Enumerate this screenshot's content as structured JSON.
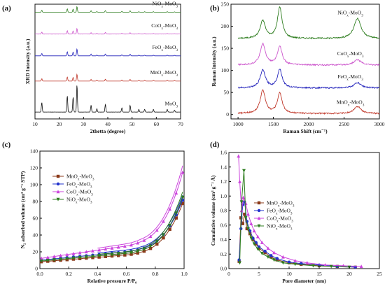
{
  "panels": [
    {
      "id": "a",
      "panel_label": "(a)",
      "chart_data": {
        "type": "line",
        "title": "",
        "xlabel": "2thetta (degree)",
        "ylabel": "XRD Intensity (a.u.)",
        "xlim": [
          10,
          70
        ],
        "xticks": [
          10,
          20,
          30,
          40,
          50,
          60,
          70
        ],
        "series": [
          {
            "name": "NiOx-MoO3",
            "label_main": "NiO",
            "label_sub": "x",
            "label_tail": "-MoO",
            "label_sub2": "3",
            "color": "#2e7d1f",
            "baseline": 0.93,
            "scale": 0.05
          },
          {
            "name": "CoOx-MoO3",
            "label_main": "CoO",
            "label_sub": "x",
            "label_tail": "-MoO",
            "label_sub2": "3",
            "color": "#cc55cc",
            "baseline": 0.74,
            "scale": 0.05
          },
          {
            "name": "FeOx-MoO3",
            "label_main": "FeO",
            "label_sub": "x",
            "label_tail": "-MoO",
            "label_sub2": "3",
            "color": "#2222bb",
            "baseline": 0.55,
            "scale": 0.06
          },
          {
            "name": "MnOx-MoO3",
            "label_main": "MnO",
            "label_sub": "x",
            "label_tail": "-MoO",
            "label_sub2": "3",
            "color": "#c0392b",
            "baseline": 0.33,
            "scale": 0.06
          },
          {
            "name": "MoO3",
            "label_main": "MoO",
            "label_sub": "3",
            "label_tail": "",
            "label_sub2": "",
            "color": "#111111",
            "baseline": 0.06,
            "scale": 0.24
          }
        ],
        "peaks": [
          [
            12.8,
            0.35
          ],
          [
            23.3,
            0.6
          ],
          [
            25.7,
            0.55
          ],
          [
            27.3,
            1.0
          ],
          [
            33.1,
            0.25
          ],
          [
            35.5,
            0.12
          ],
          [
            39.0,
            0.28
          ],
          [
            45.8,
            0.15
          ],
          [
            49.2,
            0.25
          ],
          [
            52.8,
            0.1
          ],
          [
            55.2,
            0.1
          ],
          [
            58.8,
            0.1
          ],
          [
            64.5,
            0.1
          ],
          [
            67.5,
            0.07
          ]
        ]
      }
    },
    {
      "id": "b",
      "panel_label": "(b)",
      "chart_data": {
        "type": "line",
        "title": "",
        "xlabel": "Raman Shift (cm⁻¹)",
        "ylabel": "Raman intensity (a.u.)",
        "xlim": [
          900,
          3000
        ],
        "ylim": [
          -10,
          250
        ],
        "xticks": [
          1000,
          1500,
          2000,
          2500,
          3000
        ],
        "yticks": [
          0,
          50,
          100,
          150,
          200,
          250
        ],
        "series": [
          {
            "name": "NiOx-MoO3",
            "label_main": "NiO",
            "label_sub": "x",
            "label_tail": "-MoO",
            "label_sub2": "3",
            "color": "#2e7d1f",
            "baseline": 172,
            "d": 40,
            "g": 70,
            "d2": 45
          },
          {
            "name": "CoOx-MoO3",
            "label_main": "CoO",
            "label_sub": "x",
            "label_tail": "-MoO",
            "label_sub2": "3",
            "color": "#cc55cc",
            "baseline": 112,
            "d": 48,
            "g": 42,
            "d2": 12
          },
          {
            "name": "FeOx-MoO3",
            "label_main": "FeO",
            "label_sub": "x",
            "label_tail": "-MoO",
            "label_sub2": "3",
            "color": "#2222bb",
            "baseline": 60,
            "d": 40,
            "g": 42,
            "d2": 12
          },
          {
            "name": "MnOx-MoO3",
            "label_main": "MnO",
            "label_sub": "x",
            "label_tail": "-MoO",
            "label_sub2": "3",
            "color": "#c0392b",
            "baseline": 2,
            "d": 52,
            "g": 46,
            "d2": 16
          }
        ]
      }
    },
    {
      "id": "c",
      "panel_label": "(c)",
      "chart_data": {
        "type": "line",
        "title": "",
        "xlabel": "Relative pressure P/P₀",
        "ylabel": "N₂ adsorbed volume (cm³ g⁻¹ STP)",
        "xlim": [
          0.0,
          1.0
        ],
        "ylim": [
          0,
          140
        ],
        "xticks": [
          0.0,
          0.2,
          0.4,
          0.6,
          0.8,
          1.0
        ],
        "xtick_labels": [
          "0.0",
          "0.2",
          "0.4",
          "0.6",
          "0.8",
          "1.0"
        ],
        "yticks": [
          0,
          20,
          40,
          60,
          80,
          100,
          120,
          140
        ],
        "legend": "top-left",
        "series": [
          {
            "name": "MnOx-MoO3",
            "label_main": "MnO",
            "label_sub": "x",
            "label_tail": "-MoO",
            "label_sub2": "3",
            "color": "#8b3a1a",
            "marker": "square",
            "start": 8,
            "mid": 18,
            "end": 82
          },
          {
            "name": "FeOx-MoO3",
            "label_main": "FeO",
            "label_sub": "x",
            "label_tail": "-MoO",
            "label_sub2": "3",
            "color": "#2233cc",
            "marker": "circle",
            "start": 10,
            "mid": 22,
            "end": 86
          },
          {
            "name": "CoOx-MoO3",
            "label_main": "CoO",
            "label_sub": "x",
            "label_tail": "-MoO",
            "label_sub2": "3",
            "color": "#cc44dd",
            "marker": "triangle",
            "start": 12,
            "mid": 30,
            "end": 121
          },
          {
            "name": "NiOx-MoO3",
            "label_main": "NiO",
            "label_sub": "x",
            "label_tail": "-MoO",
            "label_sub2": "3",
            "color": "#2e7d1f",
            "marker": "triangle-down",
            "start": 9,
            "mid": 20,
            "end": 90
          }
        ]
      }
    },
    {
      "id": "d",
      "panel_label": "(d)",
      "chart_data": {
        "type": "line",
        "title": "",
        "xlabel": "Pore diameter (nm)",
        "ylabel": "Cumulative volume (cm³ g⁻¹ Å)",
        "xlim": [
          0,
          25
        ],
        "ylim": [
          0.0,
          1.6
        ],
        "xticks": [
          0,
          5,
          10,
          15,
          20,
          25
        ],
        "yticks": [
          0.0,
          0.2,
          0.4,
          0.6,
          0.8,
          1.0,
          1.2,
          1.4,
          1.6
        ],
        "ytick_labels": [
          "0.0",
          "0.2",
          "0.4",
          "0.6",
          "0.8",
          "1.0",
          "1.2",
          "1.4",
          "1.6"
        ],
        "legend": "center-left",
        "series": [
          {
            "name": "MnOx-MoO3",
            "label_main": "MnO",
            "label_sub": "x",
            "label_tail": "-MoO",
            "label_sub2": "3",
            "color": "#8b3a1a",
            "marker": "square",
            "x": [
              1.7,
              2.0,
              2.3,
              2.6,
              3.0,
              3.5,
              4.0,
              4.5,
              5.0,
              6.0,
              7.0,
              8.0,
              10,
              12,
              15,
              18,
              21
            ],
            "y": [
              0.1,
              0.7,
              0.62,
              0.75,
              0.55,
              0.48,
              0.4,
              0.34,
              0.28,
              0.22,
              0.16,
              0.12,
              0.08,
              0.06,
              0.04,
              0.03,
              0.02
            ]
          },
          {
            "name": "FeOx-MoO3",
            "label_main": "FeO",
            "label_sub": "x",
            "label_tail": "-MoO",
            "label_sub2": "3",
            "color": "#2233cc",
            "marker": "circle",
            "x": [
              1.7,
              2.0,
              2.3,
              2.6,
              3.0,
              3.5,
              4.0,
              4.5,
              5.0,
              6.0,
              7.0,
              8.0,
              10,
              12,
              15,
              18,
              21
            ],
            "y": [
              0.12,
              0.55,
              0.88,
              0.92,
              0.65,
              0.52,
              0.42,
              0.36,
              0.3,
              0.24,
              0.18,
              0.14,
              0.09,
              0.07,
              0.05,
              0.03,
              0.02
            ]
          },
          {
            "name": "CoOx-MoO3",
            "label_main": "CoO",
            "label_sub": "x",
            "label_tail": "-MoO",
            "label_sub2": "3",
            "color": "#cc44dd",
            "marker": "triangle",
            "x": [
              1.6,
              1.8,
              2.1,
              2.4,
              2.8,
              3.2,
              3.7,
              4.2,
              4.8,
              5.5,
              6.5,
              7.5,
              9.0,
              11,
              13,
              16,
              19,
              22
            ],
            "y": [
              1.55,
              1.2,
              0.8,
              0.98,
              0.9,
              0.75,
              0.62,
              0.52,
              0.44,
              0.36,
              0.28,
              0.22,
              0.16,
              0.11,
              0.08,
              0.05,
              0.04,
              0.03
            ]
          },
          {
            "name": "NiOx-MoO3",
            "label_main": "NiO",
            "label_sub": "x",
            "label_tail": "-MoO",
            "label_sub2": "3",
            "color": "#2e7d1f",
            "marker": "triangle-down",
            "x": [
              1.8,
              2.1,
              2.5,
              2.8,
              3.2,
              3.7,
              4.2,
              4.8,
              5.5,
              6.5,
              7.5,
              9.0,
              11,
              14,
              17,
              20
            ],
            "y": [
              0.08,
              0.92,
              1.35,
              0.7,
              0.55,
              0.42,
              0.34,
              0.27,
              0.21,
              0.16,
              0.12,
              0.08,
              0.06,
              0.04,
              0.03,
              0.02
            ]
          }
        ]
      }
    }
  ]
}
